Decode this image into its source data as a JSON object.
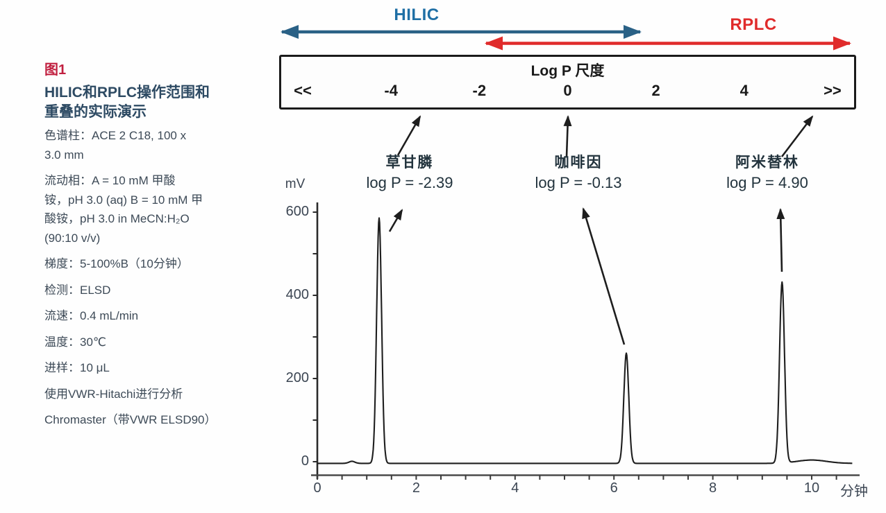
{
  "figure": {
    "label": "图1",
    "title_lines": [
      "HILIC和RPLC操作范围和",
      "重叠的实际演示"
    ],
    "conditions": [
      {
        "text": "色谱柱：ACE 2 C18, 100 x",
        "gap": true
      },
      {
        "text": "3.0 mm",
        "gap": false
      },
      {
        "text": "流动相：A = 10 mM 甲酸",
        "gap": true
      },
      {
        "text": "铵，pH 3.0 (aq) B = 10 mM 甲",
        "gap": false
      },
      {
        "text": "酸铵，pH 3.0 in MeCN:H₂O",
        "gap": false
      },
      {
        "text": "(90:10 v/v)",
        "gap": false
      },
      {
        "text": "梯度：5-100%B（10分钟）",
        "gap": true
      },
      {
        "text": "检测：ELSD",
        "gap": true
      },
      {
        "text": "流速：0.4 mL/min",
        "gap": true
      },
      {
        "text": "温度：30℃",
        "gap": true
      },
      {
        "text": "进样：10 μL",
        "gap": true
      },
      {
        "text": "使用VWR-Hitachi进行分析",
        "gap": true
      },
      {
        "text": "Chromaster（带VWR ELSD90）",
        "gap": true
      }
    ]
  },
  "techniques": {
    "hilic": "HILIC",
    "rplc": "RPLC"
  },
  "logp_scale": {
    "title": "Log P 尺度",
    "items": [
      "<<",
      "-4",
      "-2",
      "0",
      "2",
      "4",
      ">>"
    ]
  },
  "annotations": {
    "compounds": [
      {
        "name": "草甘膦",
        "logp_label": "log P = -2.39"
      },
      {
        "name": "咖啡因",
        "logp_label": "log P = -0.13"
      },
      {
        "name": "阿米替林",
        "logp_label": "log P = 4.90"
      }
    ]
  },
  "chart_data": {
    "type": "line",
    "title": "",
    "xlabel": "分钟",
    "ylabel": "mV",
    "xlim": [
      0,
      10.9
    ],
    "ylim": [
      -25,
      620
    ],
    "x_tick_labels": [
      0,
      2,
      4,
      6,
      8,
      10
    ],
    "y_tick_labels": [
      0,
      200,
      400,
      600
    ],
    "x_minor_tick_step": 0.5,
    "y_minor_tick_step": 100,
    "grid": false,
    "baseline_mV": -4,
    "peaks": [
      {
        "name": "草甘膦",
        "log_p": -2.39,
        "rt_min": 1.25,
        "height_mV": 590,
        "sigma_min": 0.05
      },
      {
        "name": "咖啡因",
        "log_p": -0.13,
        "rt_min": 6.25,
        "height_mV": 265,
        "sigma_min": 0.05
      },
      {
        "name": "阿米替林",
        "log_p": 4.9,
        "rt_min": 9.4,
        "height_mV": 435,
        "sigma_min": 0.05
      }
    ],
    "baseline_features": [
      {
        "rt_min": 0.7,
        "height_mV": 5,
        "sigma_min": 0.06
      },
      {
        "rt_min": 10.0,
        "height_mV": 8,
        "sigma_min": 0.3
      }
    ]
  },
  "colors": {
    "figure_label": "#c12040",
    "sidebar_title": "#2d4a63",
    "sidebar_body": "#3d4a57",
    "hilic_arrow": "#2a6186",
    "hilic_text": "#1f6fa5",
    "rplc": "#e02b2b",
    "box_border": "#1a1a1a",
    "compound_text": "#22333d",
    "axis_text": "#3c4653",
    "trace": "#1e1e1e"
  }
}
